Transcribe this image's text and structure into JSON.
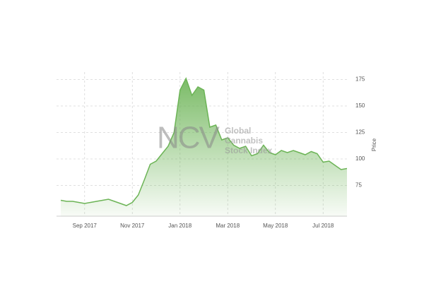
{
  "chart_data": {
    "type": "area",
    "y_label": "Price",
    "watermark": {
      "logo": "NCV",
      "lines": [
        "Global",
        "Cannabis",
        "Stock Index"
      ]
    },
    "categories": [
      null,
      null,
      null,
      null,
      "Sep 2017",
      null,
      null,
      null,
      null,
      null,
      null,
      null,
      "Nov 2017",
      null,
      null,
      null,
      null,
      null,
      null,
      null,
      "Jan 2018",
      null,
      null,
      null,
      null,
      null,
      null,
      null,
      "Mar 2018",
      null,
      null,
      null,
      null,
      null,
      null,
      null,
      "May 2018",
      null,
      null,
      null,
      null,
      null,
      null,
      null,
      "Jul 2018",
      null,
      null,
      null,
      null
    ],
    "series": [
      {
        "name": "NCV Global Cannabis Stock Index",
        "color": "#6cb456",
        "values": [
          61,
          60,
          60,
          59,
          58,
          59,
          60,
          61,
          62,
          60,
          58,
          56,
          59,
          66,
          80,
          95,
          98,
          105,
          112,
          125,
          165,
          176,
          160,
          168,
          165,
          130,
          132,
          118,
          120,
          113,
          110,
          112,
          103,
          105,
          113,
          106,
          104,
          108,
          106,
          108,
          106,
          104,
          107,
          105,
          97,
          98,
          94,
          90,
          91
        ]
      }
    ],
    "ylim": [
      46,
      182
    ],
    "yticks": [
      75,
      100,
      125,
      150,
      175
    ],
    "grid": true,
    "y_axis_side": "right"
  }
}
